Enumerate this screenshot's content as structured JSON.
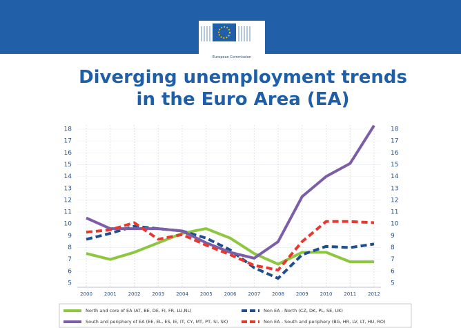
{
  "header": {
    "logo_text": "European Commission"
  },
  "chart_data": {
    "type": "line",
    "title": "Diverging unemployment trends in the Euro Area (EA)",
    "categories": [
      "2000",
      "2001",
      "2002",
      "2003",
      "2004",
      "2005",
      "2006",
      "2007",
      "2008",
      "2009",
      "2010",
      "2011",
      "2012"
    ],
    "series": [
      {
        "name": "North and core of EA (AT, BE, DE, FI, FR, LU,NL)",
        "color": "#8dc63f",
        "style": "solid",
        "values": [
          7.5,
          7.0,
          7.6,
          8.4,
          9.2,
          9.6,
          8.8,
          7.5,
          6.6,
          7.6,
          7.6,
          6.8,
          6.8
        ]
      },
      {
        "name": "Non EA - North (CZ, DK, PL, SE, UK)",
        "color": "#1f4e8c",
        "style": "dashed",
        "values": [
          8.7,
          9.2,
          9.8,
          9.6,
          9.4,
          8.8,
          7.8,
          6.3,
          5.4,
          7.4,
          8.1,
          8.0,
          8.3
        ]
      },
      {
        "name": "South and periphery of EA (EE, EL, ES, IE, IT, CY, MT, PT, SI, SK)",
        "color": "#7b5ea7",
        "style": "solid",
        "values": [
          10.5,
          9.6,
          9.6,
          9.6,
          9.4,
          8.4,
          7.6,
          7.1,
          8.5,
          12.3,
          14.0,
          15.1,
          18.3
        ]
      },
      {
        "name": "Non EA - South and periphery (BG, HR, LV, LT, HU, RO)",
        "color": "#e8392f",
        "style": "dashed",
        "values": [
          9.3,
          9.5,
          10.1,
          8.7,
          9.1,
          8.2,
          7.4,
          6.5,
          6.1,
          8.5,
          10.2,
          10.2,
          10.1
        ]
      }
    ],
    "ylim": [
      5,
      18
    ],
    "yticks": [
      5,
      6,
      7,
      8,
      9,
      10,
      11,
      12,
      13,
      14,
      15,
      16,
      17,
      18
    ],
    "grid": true
  }
}
